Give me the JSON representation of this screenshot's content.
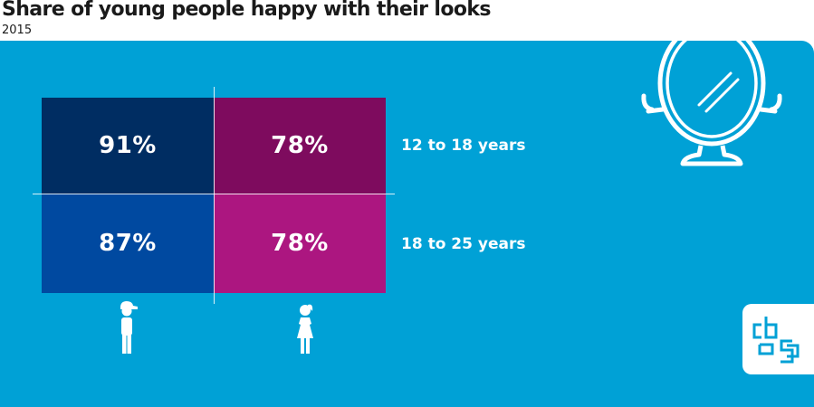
{
  "title": "Share of young people happy with their looks",
  "subtitle": "2015",
  "colors": {
    "background": "#00a1d6",
    "boys_12_18": "#002d62",
    "girls_12_18": "#7e0b5e",
    "boys_18_25": "#0049a0",
    "girls_18_25": "#ac1680"
  },
  "icons": [
    "mirror-icon",
    "boy-icon",
    "girl-icon",
    "cbs-logo-icon"
  ],
  "chart_data": {
    "type": "table",
    "series": [
      {
        "icon": "boy-icon",
        "values": [
          91,
          87
        ]
      },
      {
        "icon": "girl-icon",
        "values": [
          78,
          78
        ]
      }
    ],
    "categories": [
      "12 to 18 years",
      "18 to 25 years"
    ],
    "labels": {
      "boys_12_18": "91%",
      "girls_12_18": "78%",
      "boys_18_25": "87%",
      "girls_18_25": "78%"
    },
    "unit": "%"
  }
}
